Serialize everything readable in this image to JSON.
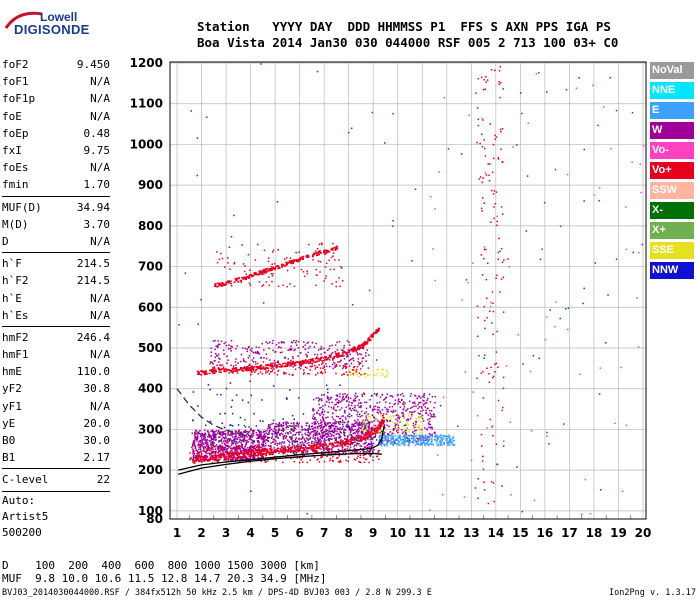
{
  "logo": {
    "line1": "Lowell",
    "line2": "DIGISONDE"
  },
  "header": {
    "line1": "Station   YYYY DAY  DDD HHMMSS P1  FFS S AXN PPS IGA PS",
    "line2": "Boa Vista 2014 Jan30 030 044000 RSF 005 2 713 100 03+ C0"
  },
  "params": [
    {
      "k": "foF2",
      "v": "9.450"
    },
    {
      "k": "foF1",
      "v": "N/A"
    },
    {
      "k": "foF1p",
      "v": "N/A"
    },
    {
      "k": "foE",
      "v": "N/A"
    },
    {
      "k": "foEp",
      "v": "0.48"
    },
    {
      "k": "fxI",
      "v": "9.75"
    },
    {
      "k": "foEs",
      "v": "N/A"
    },
    {
      "k": "fmin",
      "v": "1.70"
    },
    {
      "k": "MUF(D)",
      "v": "34.94",
      "sep": true
    },
    {
      "k": "M(D)",
      "v": "3.70"
    },
    {
      "k": "D",
      "v": "N/A"
    },
    {
      "k": "h`F",
      "v": "214.5",
      "sep": true
    },
    {
      "k": "h`F2",
      "v": "214.5"
    },
    {
      "k": "h`E",
      "v": "N/A"
    },
    {
      "k": "h`Es",
      "v": "N/A"
    },
    {
      "k": "hmF2",
      "v": "246.4",
      "sep": true
    },
    {
      "k": "hmF1",
      "v": "N/A"
    },
    {
      "k": "hmE",
      "v": "110.0"
    },
    {
      "k": "yF2",
      "v": "30.8"
    },
    {
      "k": "yF1",
      "v": "N/A"
    },
    {
      "k": "yE",
      "v": "20.0"
    },
    {
      "k": "B0",
      "v": "30.0"
    },
    {
      "k": "B1",
      "v": "2.17"
    },
    {
      "k": "C-level",
      "v": "22",
      "sep": true
    }
  ],
  "auto": {
    "l1": "Auto:",
    "l2": "Artist5",
    "l3": "500200"
  },
  "legend": [
    {
      "label": "NoVal",
      "color": "#999999"
    },
    {
      "label": "NNE",
      "color": "#00e6ff"
    },
    {
      "label": "E",
      "color": "#3ca0ff"
    },
    {
      "label": "W",
      "color": "#a0009a"
    },
    {
      "label": "Vo-",
      "color": "#ff40c0"
    },
    {
      "label": "Vo+",
      "color": "#e6001e"
    },
    {
      "label": "SSW",
      "color": "#ffb4a0"
    },
    {
      "label": "X-",
      "color": "#007000"
    },
    {
      "label": "X+",
      "color": "#70b050"
    },
    {
      "label": "SSE",
      "color": "#e6e020"
    },
    {
      "label": "NNW",
      "color": "#1010d0"
    }
  ],
  "footer": {
    "row1": "D    100  200  400  600  800 1000 1500 3000 [km]",
    "row2": "MUF  9.8 10.0 10.6 11.5 12.8 14.7 20.3 34.9 [MHz]",
    "file": "BVJ03_2014030044000.RSF / 384fx512h 50 kHz 2.5 km / DPS-4D BVJ03 003 / 2.8 N 299.3 E",
    "version": "Ion2Png v. 1.3.17"
  },
  "chart_data": {
    "type": "scatter",
    "xlim": [
      1,
      20
    ],
    "ylim": [
      80,
      1200
    ],
    "x_ticks": [
      1,
      2,
      3,
      4,
      5,
      6,
      7,
      8,
      9,
      10,
      11,
      12,
      13,
      14,
      15,
      16,
      17,
      18,
      19,
      20
    ],
    "y_ticks": [
      80,
      100,
      200,
      300,
      400,
      500,
      600,
      700,
      800,
      900,
      1000,
      1100,
      1200
    ],
    "grid": true,
    "trace_curve": [
      [
        1.05,
        200
      ],
      [
        2,
        213
      ],
      [
        3,
        220
      ],
      [
        4,
        226
      ],
      [
        5,
        232
      ],
      [
        6,
        238
      ],
      [
        7,
        243
      ],
      [
        8,
        248
      ],
      [
        8.7,
        252
      ],
      [
        9,
        255
      ],
      [
        9.2,
        262
      ],
      [
        9.35,
        278
      ],
      [
        9.45,
        310
      ]
    ],
    "model_curve": [
      [
        1.05,
        190
      ],
      [
        2,
        205
      ],
      [
        3,
        214
      ],
      [
        4,
        222
      ],
      [
        5,
        228
      ],
      [
        6,
        233
      ],
      [
        7,
        237
      ],
      [
        8,
        240
      ],
      [
        9,
        241
      ],
      [
        9.35,
        239
      ]
    ],
    "dashed_curve": [
      [
        1,
        400
      ],
      [
        1.5,
        360
      ],
      [
        2,
        330
      ],
      [
        2.5,
        310
      ],
      [
        3,
        298
      ],
      [
        3.5,
        290
      ],
      [
        4,
        284
      ]
    ],
    "o_trace": [
      [
        1.5,
        225
      ],
      [
        2.5,
        233
      ],
      [
        3.5,
        240
      ],
      [
        4.5,
        246
      ],
      [
        5.5,
        252
      ],
      [
        6.5,
        258
      ],
      [
        7.5,
        266
      ],
      [
        8.5,
        280
      ],
      [
        9.1,
        300
      ],
      [
        9.4,
        325
      ]
    ],
    "double_hop": [
      [
        1.8,
        440
      ],
      [
        3,
        447
      ],
      [
        4,
        452
      ],
      [
        5,
        458
      ],
      [
        6,
        466
      ],
      [
        7,
        476
      ],
      [
        8,
        492
      ],
      [
        8.6,
        510
      ],
      [
        9.2,
        550
      ]
    ],
    "triple_hop": [
      [
        2.5,
        655
      ],
      [
        3.5,
        670
      ],
      [
        4.5,
        690
      ],
      [
        5.5,
        710
      ],
      [
        6.5,
        730
      ],
      [
        7.5,
        748
      ]
    ],
    "clusters": [
      {
        "series": "W",
        "x": [
          1.6,
          4.6
        ],
        "y": [
          225,
          300
        ],
        "n": 900
      },
      {
        "series": "W",
        "x": [
          4.6,
          9
        ],
        "y": [
          240,
          320
        ],
        "n": 700
      },
      {
        "series": "W",
        "x": [
          6.5,
          11.5
        ],
        "y": [
          270,
          390
        ],
        "n": 650
      },
      {
        "series": "W",
        "x": [
          2.3,
          8.8
        ],
        "y": [
          450,
          520
        ],
        "n": 300
      },
      {
        "series": "E",
        "x": [
          9.2,
          12.3
        ],
        "y": [
          262,
          288
        ],
        "n": 350
      },
      {
        "series": "SSE",
        "x": [
          8.5,
          11
        ],
        "y": [
          290,
          340
        ],
        "n": 90
      },
      {
        "series": "SSE",
        "x": [
          8,
          9.6
        ],
        "y": [
          430,
          450
        ],
        "n": 40
      },
      {
        "series": "Vo+",
        "x": [
          1.5,
          9.3
        ],
        "y": [
          220,
          260
        ],
        "n": 250
      },
      {
        "series": "Vo+",
        "x": [
          2.3,
          8.8
        ],
        "y": [
          435,
          470
        ],
        "n": 160
      },
      {
        "series": "Vo+",
        "x": [
          2.5,
          7.8
        ],
        "y": [
          650,
          760
        ],
        "n": 110
      },
      {
        "series": "NNW",
        "x": [
          1.6,
          9.5
        ],
        "y": [
          230,
          420
        ],
        "n": 110
      },
      {
        "series": "X-",
        "x": [
          1.5,
          11
        ],
        "y": [
          230,
          330
        ],
        "n": 60
      },
      {
        "series": "Vo+",
        "x": [
          13.2,
          14.3
        ],
        "y": [
          100,
          1200
        ],
        "n": 140
      },
      {
        "series": "Vo-",
        "x": [
          11,
          20
        ],
        "y": [
          90,
          1200
        ],
        "n": 70
      },
      {
        "series": "W",
        "x": [
          1,
          20
        ],
        "y": [
          90,
          1200
        ],
        "n": 60
      },
      {
        "series": "X-",
        "x": [
          13,
          19
        ],
        "y": [
          100,
          1200
        ],
        "n": 35
      }
    ]
  }
}
